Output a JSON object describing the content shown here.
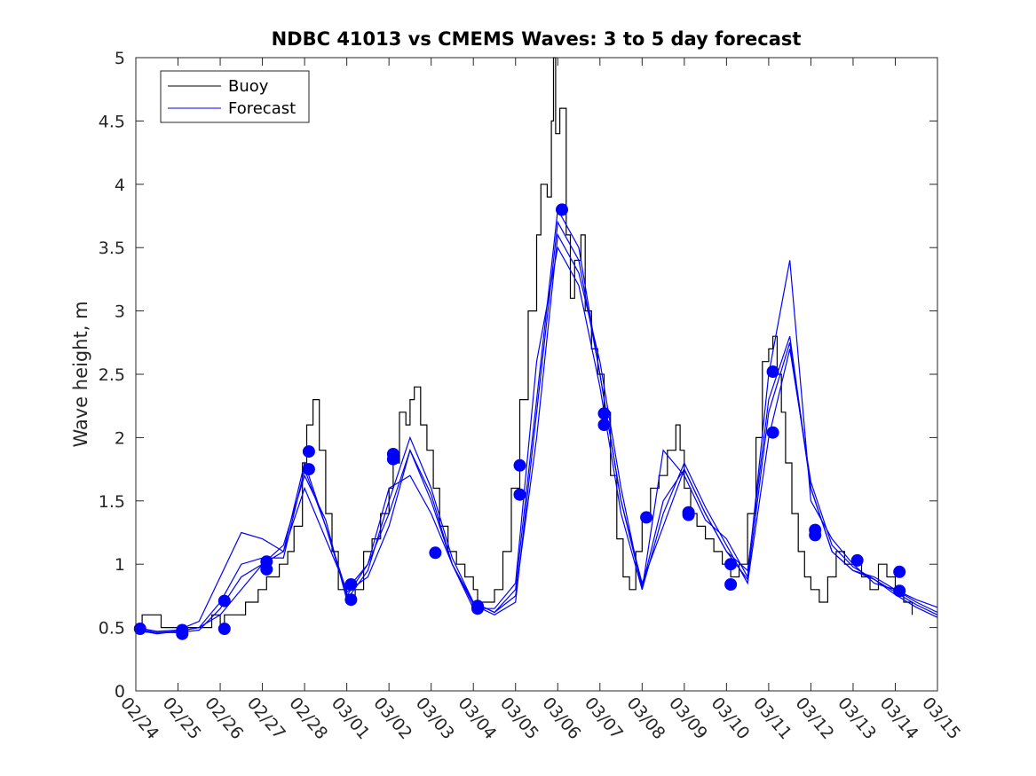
{
  "chart_data": {
    "type": "line",
    "title": "NDBC 41013 vs CMEMS Waves: 3 to 5 day forecast",
    "xlabel": "",
    "ylabel": "Wave height, m",
    "ylim": [
      0,
      5
    ],
    "xlim": [
      0,
      19
    ],
    "x_tick_labels": [
      "02/24",
      "02/25",
      "02/26",
      "02/27",
      "02/28",
      "03/01",
      "03/02",
      "03/03",
      "03/04",
      "03/05",
      "03/06",
      "03/07",
      "03/08",
      "03/09",
      "03/10",
      "03/11",
      "03/12",
      "03/13",
      "03/14",
      "03/15"
    ],
    "y_ticks": [
      0,
      0.5,
      1,
      1.5,
      2,
      2.5,
      3,
      3.5,
      4,
      4.5,
      5
    ],
    "y_tick_labels": [
      "0",
      "0.5",
      "1",
      "1.5",
      "2",
      "2.5",
      "3",
      "3.5",
      "4",
      "4.5",
      "5"
    ],
    "legend": {
      "position": "top-left",
      "entries": [
        {
          "label": "Buoy",
          "color": "#000000"
        },
        {
          "label": "Forecast",
          "color": "#0000ff"
        }
      ]
    },
    "buoy_color": "#000000",
    "forecast_color": "#0000ff",
    "marker_color": "#0000ff",
    "buoy": {
      "x": [
        0,
        0.15,
        0.3,
        0.6,
        1.0,
        1.3,
        1.6,
        1.8,
        2.0,
        2.1,
        2.3,
        2.6,
        2.9,
        3.1,
        3.4,
        3.6,
        3.75,
        3.95,
        4.05,
        4.2,
        4.35,
        4.5,
        4.65,
        4.8,
        5.0,
        5.2,
        5.4,
        5.6,
        5.8,
        6.0,
        6.1,
        6.25,
        6.4,
        6.5,
        6.6,
        6.75,
        6.9,
        7.05,
        7.2,
        7.4,
        7.6,
        7.8,
        8.0,
        8.1,
        8.3,
        8.5,
        8.7,
        8.9,
        9.1,
        9.3,
        9.5,
        9.6,
        9.75,
        9.85,
        9.9,
        9.95,
        10.05,
        10.2,
        10.3,
        10.4,
        10.55,
        10.65,
        10.8,
        10.95,
        11.1,
        11.25,
        11.4,
        11.55,
        11.7,
        11.85,
        12.0,
        12.2,
        12.4,
        12.6,
        12.8,
        12.9,
        13.0,
        13.15,
        13.3,
        13.5,
        13.7,
        13.9,
        14.1,
        14.3,
        14.5,
        14.7,
        14.85,
        15.0,
        15.1,
        15.2,
        15.3,
        15.4,
        15.55,
        15.7,
        15.85,
        16.0,
        16.2,
        16.4,
        16.6,
        16.8,
        17.0,
        17.2,
        17.4,
        17.6,
        17.8,
        18.0,
        18.2,
        18.4
      ],
      "y": [
        0.5,
        0.6,
        0.6,
        0.5,
        0.5,
        0.5,
        0.5,
        0.6,
        0.5,
        0.6,
        0.6,
        0.7,
        0.8,
        0.9,
        1.0,
        1.1,
        1.3,
        1.8,
        2.1,
        2.3,
        1.9,
        1.4,
        1.1,
        0.8,
        0.7,
        0.8,
        1.1,
        1.2,
        1.4,
        1.6,
        1.8,
        2.2,
        2.1,
        2.3,
        2.4,
        2.1,
        1.9,
        1.6,
        1.3,
        1.1,
        1.0,
        0.9,
        0.8,
        0.7,
        0.7,
        0.8,
        1.1,
        1.6,
        2.3,
        3.0,
        3.6,
        4.0,
        3.9,
        4.5,
        5.0,
        4.4,
        4.6,
        3.6,
        3.1,
        3.4,
        3.6,
        3.0,
        2.7,
        2.5,
        2.2,
        1.7,
        1.2,
        0.9,
        0.8,
        1.1,
        1.4,
        1.6,
        1.7,
        1.9,
        2.1,
        1.9,
        1.6,
        1.4,
        1.3,
        1.2,
        1.1,
        1.0,
        0.9,
        1.0,
        1.4,
        2.0,
        2.6,
        2.7,
        2.8,
        2.5,
        2.2,
        1.8,
        1.4,
        1.1,
        0.9,
        0.8,
        0.7,
        0.9,
        1.1,
        1.0,
        1.0,
        0.9,
        0.8,
        1.0,
        0.9,
        0.8,
        0.7,
        0.6
      ]
    },
    "forecast": [
      {
        "x": [
          0,
          0.5,
          1.0,
          1.5,
          2.0,
          2.5,
          3.0,
          3.5,
          4.0,
          4.5,
          5.0,
          5.5,
          6.0,
          6.5,
          7.0,
          7.5,
          8.0,
          8.5,
          9.0,
          9.5,
          10.0,
          10.5,
          11.0,
          11.5,
          12.0,
          12.5,
          13.0,
          13.5,
          14.0,
          14.5,
          15.0,
          15.5,
          16.0,
          16.5,
          17.0,
          17.5,
          18.0,
          18.5,
          19.0
        ],
        "y": [
          0.48,
          0.45,
          0.47,
          0.5,
          0.6,
          0.8,
          1.0,
          1.1,
          1.8,
          1.3,
          0.75,
          1.0,
          1.4,
          1.9,
          1.5,
          1.0,
          0.7,
          0.62,
          0.8,
          2.3,
          3.8,
          3.5,
          2.5,
          1.5,
          0.85,
          1.3,
          1.75,
          1.4,
          1.1,
          0.95,
          2.3,
          2.8,
          1.6,
          1.1,
          0.95,
          0.9,
          0.8,
          0.7,
          0.62
        ]
      },
      {
        "x": [
          0,
          0.5,
          1.0,
          1.5,
          2.0,
          2.5,
          3.0,
          3.5,
          4.0,
          4.5,
          5.0,
          5.5,
          6.0,
          6.5,
          7.0,
          7.5,
          8.0,
          8.5,
          9.0,
          9.5,
          10.0,
          10.5,
          11.0,
          11.5,
          12.0,
          12.5,
          13.0,
          13.5,
          14.0,
          14.5,
          15.0,
          15.5,
          16.0,
          16.5,
          17.0,
          17.5,
          18.0,
          18.5,
          19.0
        ],
        "y": [
          0.47,
          0.46,
          0.46,
          0.48,
          0.65,
          0.9,
          1.0,
          1.15,
          1.7,
          1.35,
          0.72,
          0.95,
          1.5,
          2.0,
          1.6,
          1.05,
          0.7,
          0.62,
          0.75,
          2.0,
          3.6,
          3.3,
          2.6,
          1.6,
          0.8,
          1.4,
          1.8,
          1.45,
          1.15,
          0.85,
          2.0,
          2.7,
          1.65,
          1.15,
          0.98,
          0.88,
          0.78,
          0.68,
          0.6
        ]
      },
      {
        "x": [
          0,
          0.5,
          1.0,
          1.5,
          2.0,
          2.5,
          3.0,
          3.5,
          4.0,
          4.5,
          5.0,
          5.5,
          6.0,
          6.5,
          7.0,
          7.5,
          8.0,
          8.5,
          9.0,
          9.5,
          10.0,
          10.5,
          11.0,
          11.5,
          12.0,
          12.5,
          13.0,
          13.5,
          14.0,
          14.5,
          15.0,
          15.5,
          16.0,
          16.5,
          17.0,
          17.5,
          18.0,
          18.5,
          19.0
        ],
        "y": [
          0.5,
          0.47,
          0.48,
          0.55,
          0.9,
          1.25,
          1.2,
          1.1,
          1.6,
          1.2,
          0.8,
          1.0,
          1.6,
          1.7,
          1.4,
          1.0,
          0.65,
          0.65,
          0.85,
          2.6,
          3.5,
          3.2,
          2.4,
          1.4,
          0.8,
          1.9,
          1.7,
          1.35,
          1.2,
          0.9,
          2.5,
          3.4,
          1.5,
          1.2,
          1.0,
          0.85,
          0.8,
          0.72,
          0.66
        ]
      },
      {
        "x": [
          0,
          0.5,
          1.0,
          1.5,
          2.0,
          2.5,
          3.0,
          3.5,
          4.0,
          4.5,
          5.0,
          5.5,
          6.0,
          6.5,
          7.0,
          7.5,
          8.0,
          8.5,
          9.0,
          9.5,
          10.0,
          10.5,
          11.0,
          11.5,
          12.0,
          12.5,
          13.0,
          13.5,
          14.0,
          14.5,
          15.0,
          15.5,
          16.0,
          16.5,
          17.0,
          17.5,
          18.0,
          18.5,
          19.0
        ],
        "y": [
          0.49,
          0.46,
          0.47,
          0.5,
          0.7,
          1.0,
          1.05,
          1.05,
          1.75,
          1.3,
          0.78,
          0.9,
          1.3,
          1.9,
          1.55,
          1.0,
          0.68,
          0.6,
          0.7,
          2.2,
          3.7,
          3.4,
          2.5,
          1.5,
          0.82,
          1.5,
          1.75,
          1.4,
          1.1,
          0.88,
          2.2,
          2.75,
          1.6,
          1.1,
          0.95,
          0.88,
          0.76,
          0.66,
          0.58
        ]
      }
    ],
    "markers": {
      "x": [
        0.1,
        1.1,
        1.1,
        2.1,
        2.1,
        3.1,
        3.1,
        4.1,
        4.1,
        5.1,
        5.1,
        6.1,
        6.1,
        7.1,
        8.1,
        8.1,
        9.1,
        9.1,
        10.1,
        11.1,
        11.1,
        12.1,
        13.1,
        13.1,
        14.1,
        14.1,
        15.1,
        15.1,
        16.1,
        16.1,
        17.1,
        18.1,
        18.1
      ],
      "y": [
        0.49,
        0.48,
        0.45,
        0.71,
        0.49,
        1.02,
        0.96,
        1.89,
        1.75,
        0.84,
        0.72,
        1.87,
        1.83,
        1.09,
        0.67,
        0.65,
        1.78,
        1.55,
        3.8,
        2.19,
        2.1,
        1.37,
        1.41,
        1.39,
        1.0,
        0.84,
        2.52,
        2.04,
        1.27,
        1.23,
        1.03,
        0.94,
        0.79
      ]
    }
  }
}
